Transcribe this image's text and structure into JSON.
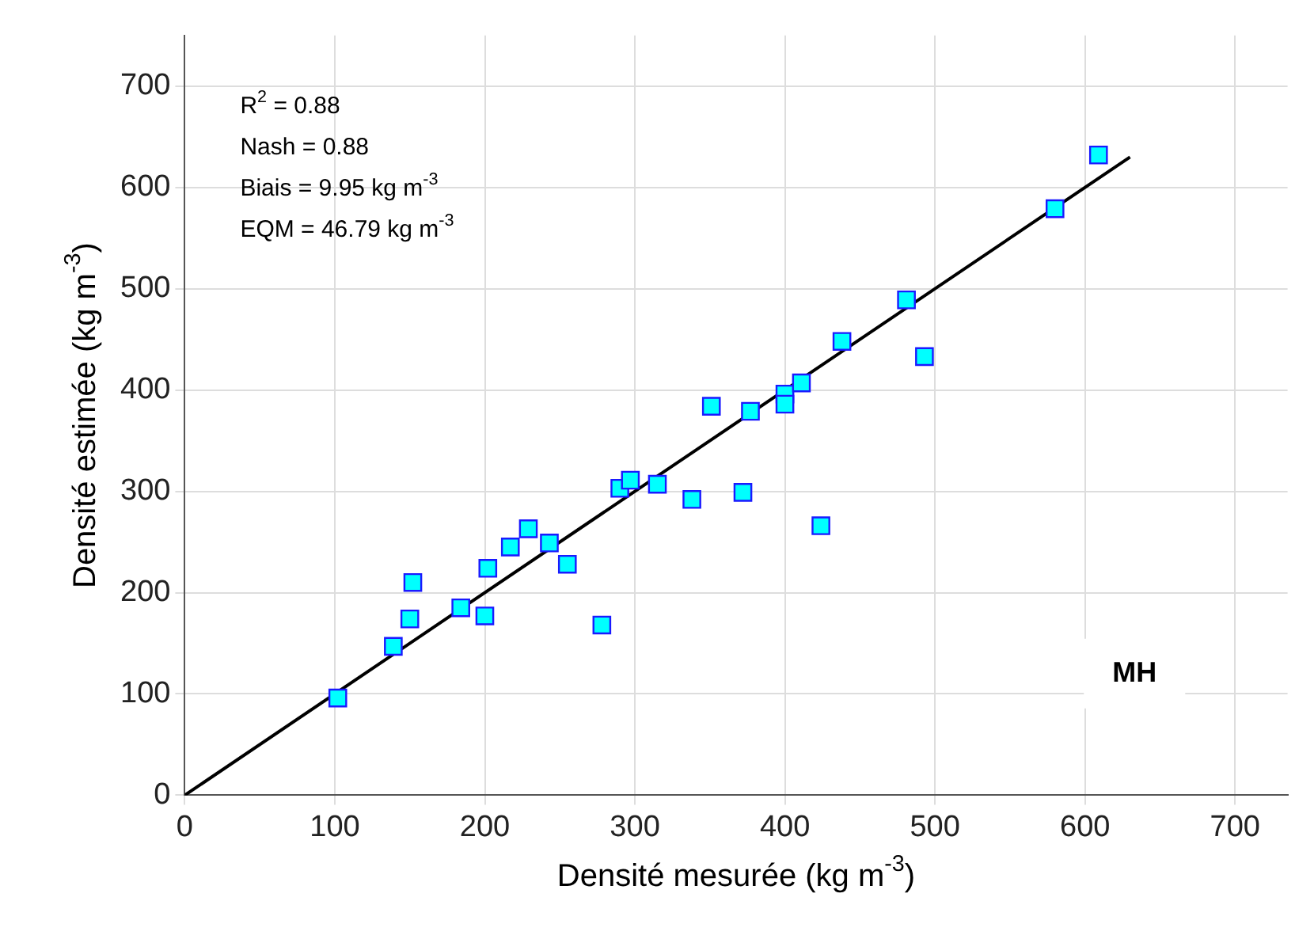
{
  "chart_data": {
    "type": "scatter",
    "xlabel": "Densité mesurée (kg m$^{-3}$)",
    "ylabel": "Densité estimée (kg m$^{-3}$)",
    "xlim": [
      0,
      735
    ],
    "ylim": [
      0,
      750
    ],
    "xticks": [
      0,
      100,
      200,
      300,
      400,
      500,
      600,
      700
    ],
    "yticks": [
      0,
      100,
      200,
      300,
      400,
      500,
      600,
      700
    ],
    "grid": true,
    "marker": "square",
    "series": [
      {
        "type": "scatter",
        "color": "#00ffff",
        "x": [
          102,
          139,
          150,
          152,
          184,
          200,
          202,
          217,
          229,
          243,
          255,
          278,
          290,
          297,
          315,
          338,
          351,
          372,
          377,
          400,
          400,
          411,
          424,
          438,
          481,
          493,
          580,
          609
        ],
        "values": [
          96,
          147,
          174,
          210,
          185,
          177,
          224,
          245,
          263,
          249,
          228,
          168,
          303,
          311,
          307,
          292,
          384,
          299,
          379,
          396,
          386,
          407,
          266,
          448,
          489,
          433,
          579,
          632
        ]
      },
      {
        "type": "line",
        "color": "#000000",
        "marker": "none",
        "x": [
          0,
          630
        ],
        "values": [
          0,
          630
        ]
      }
    ],
    "annotations": [
      "R$^{2}$ = 0.88",
      "Nash = 0.88",
      "Biais = 9.95 kg m$^{-3}$",
      "EQM = 46.79 kg m$^{-3}$",
      "MH"
    ]
  }
}
